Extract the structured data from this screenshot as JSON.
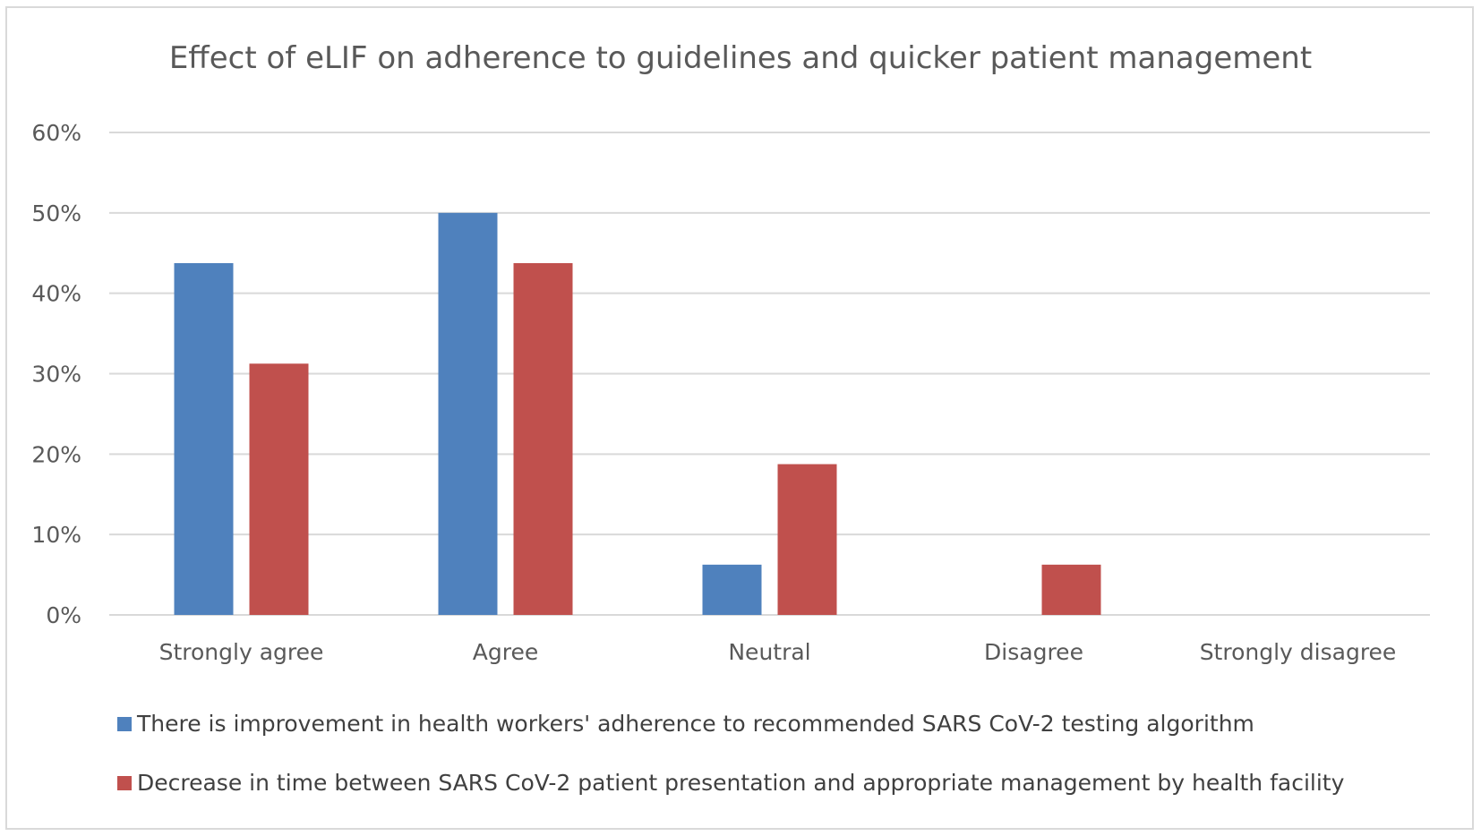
{
  "chart_data": {
    "type": "bar",
    "title": "Effect of eLIF on adherence to guidelines and quicker patient management",
    "categories": [
      "Strongly agree",
      "Agree",
      "Neutral",
      "Disagree",
      "Strongly disagree"
    ],
    "series": [
      {
        "name": "There is improvement in health workers' adherence to recommended SARS CoV-2 testing algorithm",
        "color": "#4f81bd",
        "values": [
          0.4375,
          0.5,
          0.0625,
          0,
          0
        ]
      },
      {
        "name": "Decrease in time between SARS CoV-2 patient presentation and appropriate management by health facility",
        "color": "#c0504d",
        "values": [
          0.3125,
          0.4375,
          0.1875,
          0.0625,
          0
        ]
      }
    ],
    "y_ticks": [
      "0%",
      "10%",
      "20%",
      "30%",
      "40%",
      "50%",
      "60%"
    ],
    "ylim": [
      0,
      0.6
    ],
    "grid": true,
    "legend_position": "bottom",
    "xlabel": "",
    "ylabel": ""
  }
}
